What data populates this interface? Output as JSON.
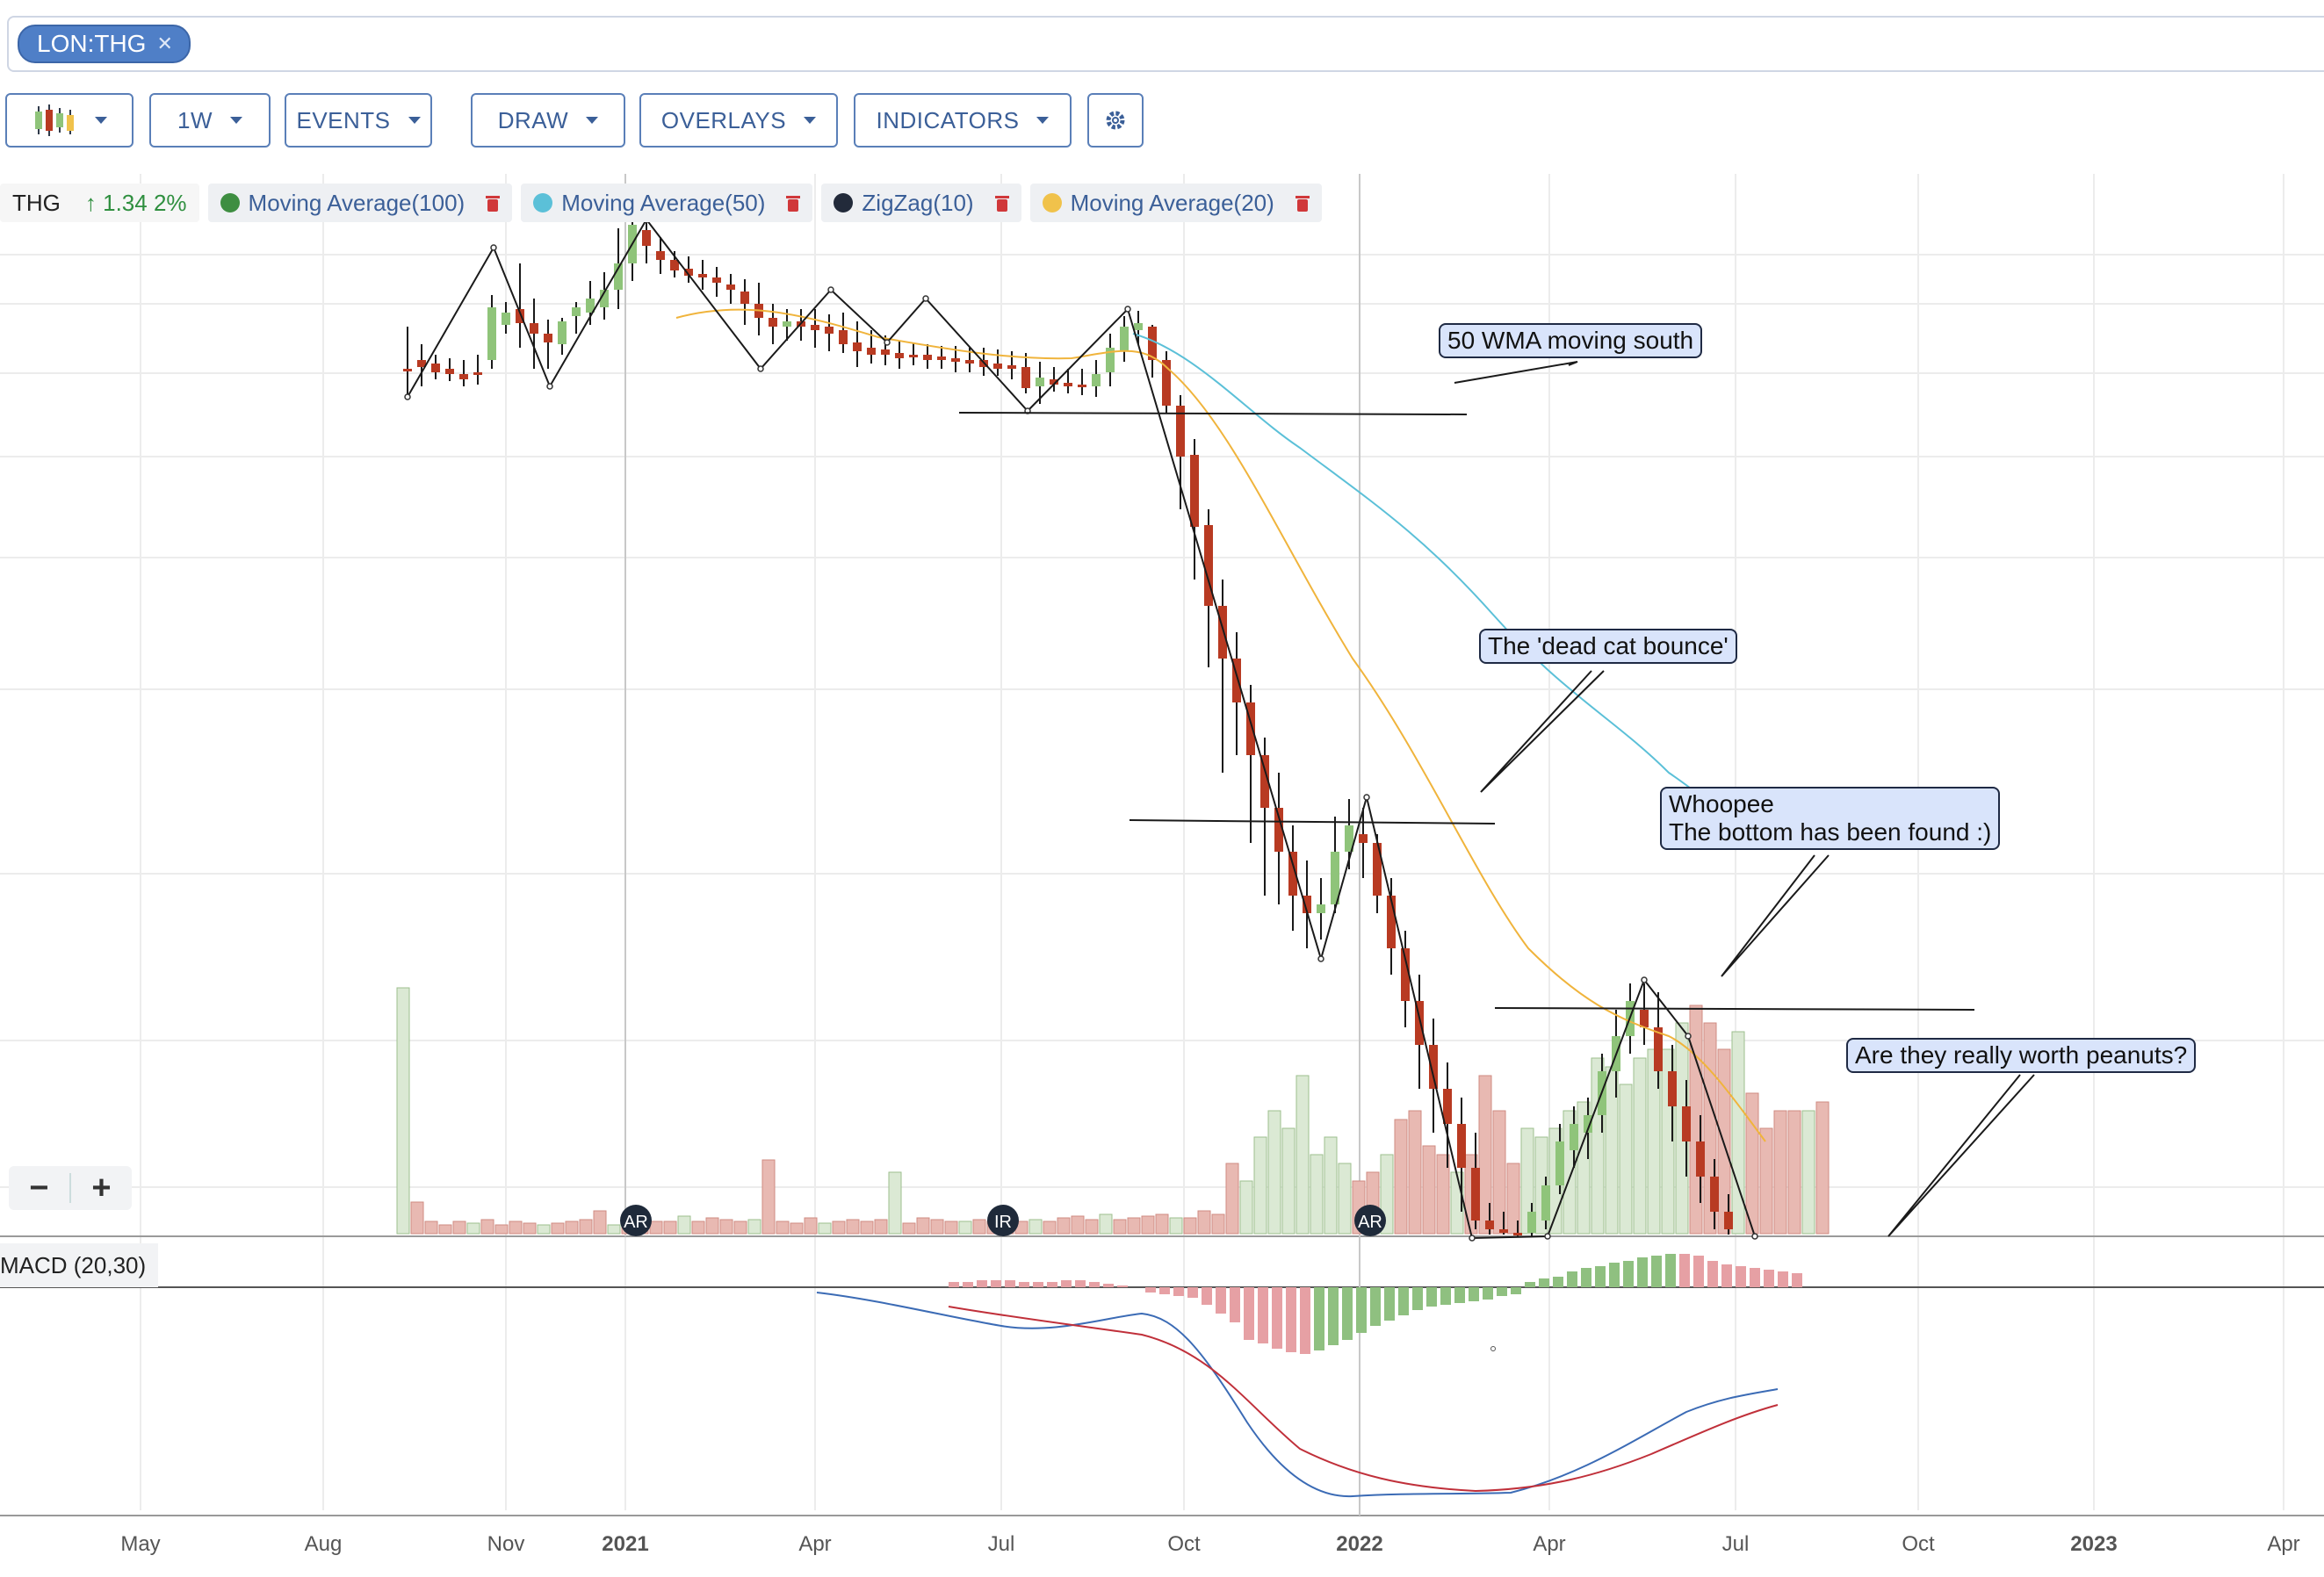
{
  "symbol": {
    "label": "LON:THG",
    "remove_icon": "close-icon"
  },
  "toolbar": {
    "chart_type_icon": "candlestick-icon",
    "interval": "1W",
    "events": "EVENTS",
    "draw": "DRAW",
    "overlays": "OVERLAYS",
    "indicators": "INDICATORS",
    "settings_icon": "gear-icon"
  },
  "legend": {
    "ticker": "THG",
    "change": "↑ 1.34 2%",
    "items": [
      {
        "label": "Moving Average(100)",
        "color": "#3e8e41"
      },
      {
        "label": "Moving Average(50)",
        "color": "#5bc0d8"
      },
      {
        "label": "ZigZag(10)",
        "color": "#222a3a"
      },
      {
        "label": "Moving Average(20)",
        "color": "#f0c24b"
      }
    ]
  },
  "annotations": {
    "wma": "50 WMA moving south",
    "dead_cat": "The 'dead cat bounce'",
    "whoopee": "Whoopee\nThe bottom has been found :)",
    "peanuts": "Are they really worth peanuts?"
  },
  "events": [
    "AR",
    "IR",
    "AR"
  ],
  "zoom": {
    "minus": "−",
    "plus": "+"
  },
  "macd": {
    "label": "MACD (20,30)"
  },
  "x_axis": [
    "May",
    "Aug",
    "Nov",
    "2021",
    "Apr",
    "Jul",
    "Oct",
    "2022",
    "Apr",
    "Jul",
    "Oct",
    "2023",
    "Apr"
  ],
  "colors": {
    "up": "#8fc47a",
    "down": "#b83a22",
    "vol_up": "#dbe9d4",
    "vol_down": "#e8b9b2",
    "ma50": "#5bc0d8",
    "ma20": "#f0b43c",
    "macd": "#3b6bb5",
    "signal": "#c0303a"
  },
  "chart_data": {
    "type": "candlestick",
    "interval": "1W",
    "y_axis": "not shown",
    "weeks": [
      "2020-09",
      "2020-10",
      "2020-11",
      "2020-12",
      "2021-01",
      "2021-02",
      "2021-03",
      "2021-04",
      "2021-05",
      "2021-06",
      "2021-07",
      "2021-08",
      "2021-09",
      "2021-10",
      "2021-11",
      "2021-12",
      "2022-01",
      "2022-02",
      "2022-03",
      "2022-04",
      "2022-05",
      "2022-06",
      "2022-07"
    ]
  }
}
